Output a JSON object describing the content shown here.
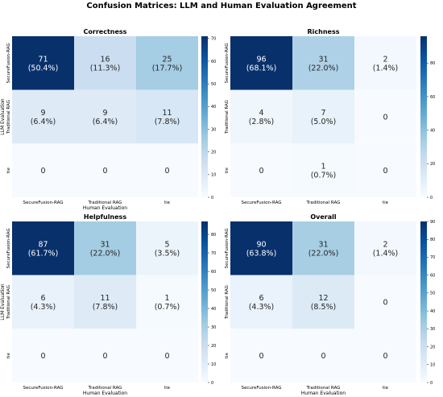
{
  "figure": {
    "title": "Confusion Matrices: LLM and Human Evaluation Agreement"
  },
  "colormap": [
    "#f7fbff",
    "#deebf7",
    "#c6dbef",
    "#9ecae1",
    "#6baed6",
    "#4292c6",
    "#2171b5",
    "#08519c",
    "#08306b"
  ],
  "chart_data": [
    {
      "type": "heatmap",
      "title": "Correctness",
      "xlabel": "Human Evaluation",
      "ylabel": "LLM Evaluation",
      "x_categories": [
        "SecureFusion-RAG",
        "Traditional RAG",
        "tie"
      ],
      "y_categories": [
        "SecureFusion-RAG",
        "Traditional RAG",
        "tie"
      ],
      "values": [
        [
          71,
          16,
          25
        ],
        [
          9,
          9,
          11
        ],
        [
          0,
          0,
          0
        ]
      ],
      "annotations": [
        [
          "71\n(50.4%)",
          "16\n(11.3%)",
          "25\n(17.7%)"
        ],
        [
          "9\n(6.4%)",
          "9\n(6.4%)",
          "11\n(7.8%)"
        ],
        [
          "0",
          "0",
          "0"
        ]
      ],
      "colorbar_ticks": [
        0,
        10,
        20,
        30,
        40,
        50,
        60,
        70
      ],
      "vmin": 0,
      "vmax": 71
    },
    {
      "type": "heatmap",
      "title": "Richness",
      "xlabel": "",
      "ylabel": "",
      "x_categories": [
        "SecureFusion-RAG",
        "Traditional RAG",
        "tie"
      ],
      "y_categories": [
        "SecureFusion-RAG",
        "Traditional RAG",
        "tie"
      ],
      "values": [
        [
          96,
          31,
          2
        ],
        [
          4,
          7,
          0
        ],
        [
          0,
          1,
          0
        ]
      ],
      "annotations": [
        [
          "96\n(68.1%)",
          "31\n(22.0%)",
          "2\n(1.4%)"
        ],
        [
          "4\n(2.8%)",
          "7\n(5.0%)",
          "0"
        ],
        [
          "0",
          "1\n(0.7%)",
          "0"
        ]
      ],
      "colorbar_ticks": [
        0,
        20,
        40,
        60,
        80
      ],
      "vmin": 0,
      "vmax": 96
    },
    {
      "type": "heatmap",
      "title": "Helpfulness",
      "xlabel": "Human Evaluation",
      "ylabel": "LLM Evaluation",
      "x_categories": [
        "SecureFusion-RAG",
        "Traditional RAG",
        "tie"
      ],
      "y_categories": [
        "SecureFusion-RAG",
        "Traditional RAG",
        "tie"
      ],
      "values": [
        [
          87,
          31,
          5
        ],
        [
          6,
          11,
          1
        ],
        [
          0,
          0,
          0
        ]
      ],
      "annotations": [
        [
          "87\n(61.7%)",
          "31\n(22.0%)",
          "5\n(3.5%)"
        ],
        [
          "6\n(4.3%)",
          "11\n(7.8%)",
          "1\n(0.7%)"
        ],
        [
          "0",
          "0",
          "0"
        ]
      ],
      "colorbar_ticks": [
        0,
        10,
        20,
        30,
        40,
        50,
        60,
        70,
        80
      ],
      "vmin": 0,
      "vmax": 87
    },
    {
      "type": "heatmap",
      "title": "Overall",
      "xlabel": "Human Evaluation",
      "ylabel": "",
      "x_categories": [
        "SecureFusion-RAG",
        "Traditional RAG",
        "tie"
      ],
      "y_categories": [
        "SecureFusion-RAG",
        "Traditional RAG",
        "tie"
      ],
      "values": [
        [
          90,
          31,
          2
        ],
        [
          6,
          12,
          0
        ],
        [
          0,
          0,
          0
        ]
      ],
      "annotations": [
        [
          "90\n(63.8%)",
          "31\n(22.0%)",
          "2\n(1.4%)"
        ],
        [
          "6\n(4.3%)",
          "12\n(8.5%)",
          "0"
        ],
        [
          "0",
          "0",
          "0"
        ]
      ],
      "colorbar_ticks": [
        0,
        10,
        20,
        30,
        40,
        50,
        60,
        70,
        80,
        90
      ],
      "vmin": 0,
      "vmax": 90
    }
  ]
}
